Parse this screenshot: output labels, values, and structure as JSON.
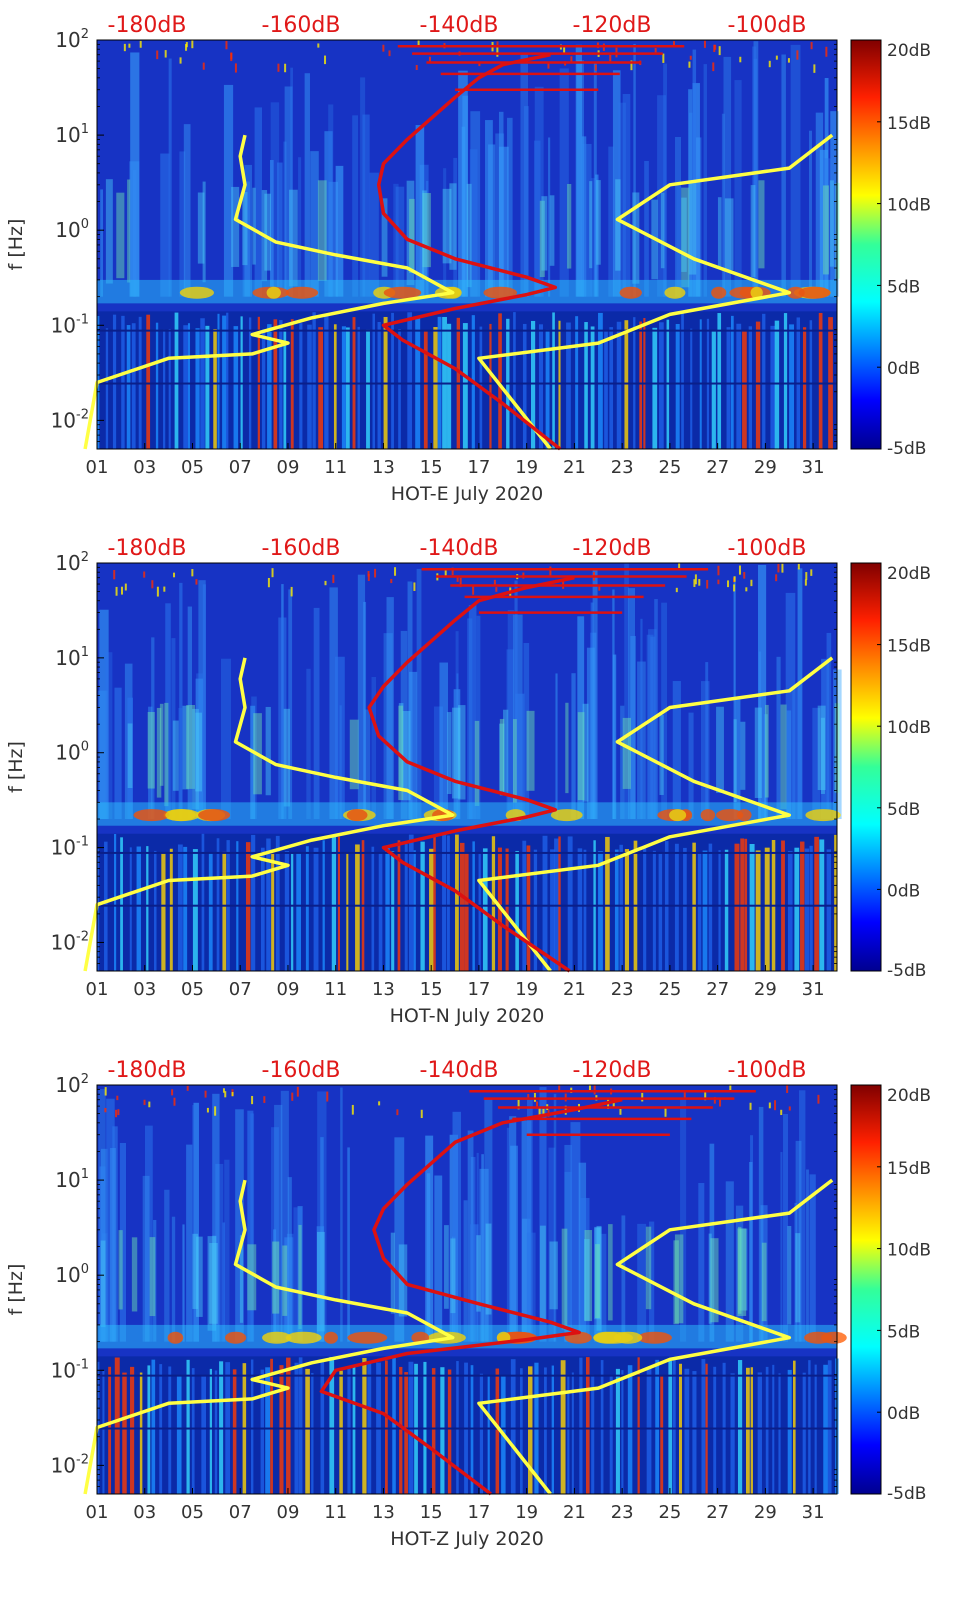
{
  "chart_data": [
    {
      "type": "heatmap",
      "xlabel": "HOT-E July 2020",
      "ylabel": "f [Hz]",
      "x_ticks": [
        "01",
        "03",
        "05",
        "07",
        "09",
        "11",
        "13",
        "15",
        "17",
        "19",
        "21",
        "23",
        "25",
        "27",
        "29",
        "31"
      ],
      "x_range": [
        1,
        32
      ],
      "y_scale": "log",
      "y_range": [
        0.005,
        100
      ],
      "y_ticks": [
        "10^-2",
        "10^-1",
        "10^0",
        "10^1",
        "10^2"
      ],
      "top_axis_ticks": [
        "-180dB",
        "-160dB",
        "-140dB",
        "-120dB",
        "-100dB"
      ],
      "colorbar": {
        "ticks": [
          "20dB",
          "15dB",
          "10dB",
          "5dB",
          "0dB",
          "-5dB"
        ],
        "range": [
          -5,
          20
        ],
        "colormap": "jet"
      },
      "series": [
        {
          "color": "#ffff44",
          "x": [
            7.2,
            7.0,
            7.2,
            6.8,
            8.5,
            11,
            14,
            15.9,
            13,
            10,
            7.5,
            9,
            7.5,
            4,
            1,
            0.5
          ],
          "y": [
            10,
            6,
            3,
            1.3,
            0.75,
            0.55,
            0.4,
            0.22,
            0.17,
            0.12,
            0.08,
            0.065,
            0.05,
            0.045,
            0.025,
            0.005
          ]
        },
        {
          "color": "#ffff44",
          "x": [
            31.8,
            30,
            25,
            22.8,
            26,
            30,
            25,
            22,
            17,
            20
          ],
          "y": [
            10,
            4.5,
            3,
            1.3,
            0.5,
            0.22,
            0.13,
            0.065,
            0.045,
            0.005
          ]
        },
        {
          "color": "#dd1111",
          "x": [
            20,
            18,
            17,
            16,
            15,
            14,
            13,
            12.8,
            13,
            14,
            16,
            19,
            20.2,
            19,
            16,
            13,
            13.8,
            16,
            18,
            20.4
          ],
          "y": [
            70,
            55,
            40,
            25,
            15,
            9,
            5,
            3,
            1.5,
            0.8,
            0.5,
            0.32,
            0.25,
            0.21,
            0.15,
            0.1,
            0.07,
            0.035,
            0.015,
            0.005
          ]
        }
      ]
    },
    {
      "type": "heatmap",
      "xlabel": "HOT-N July 2020",
      "ylabel": "f [Hz]",
      "x_ticks": [
        "01",
        "03",
        "05",
        "07",
        "09",
        "11",
        "13",
        "15",
        "17",
        "19",
        "21",
        "23",
        "25",
        "27",
        "29",
        "31"
      ],
      "x_range": [
        1,
        32
      ],
      "y_scale": "log",
      "y_range": [
        0.005,
        100
      ],
      "y_ticks": [
        "10^-2",
        "10^-1",
        "10^0",
        "10^1",
        "10^2"
      ],
      "top_axis_ticks": [
        "-180dB",
        "-160dB",
        "-140dB",
        "-120dB",
        "-100dB"
      ],
      "colorbar": {
        "ticks": [
          "20dB",
          "15dB",
          "10dB",
          "5dB",
          "0dB",
          "-5dB"
        ],
        "range": [
          -5,
          20
        ],
        "colormap": "jet"
      },
      "series": [
        {
          "color": "#ffff44",
          "x": [
            7.2,
            7.0,
            7.2,
            6.8,
            8.5,
            11,
            14,
            15.9,
            13,
            10,
            7.5,
            9,
            7.5,
            4,
            1,
            0.5
          ],
          "y": [
            10,
            6,
            3,
            1.3,
            0.75,
            0.55,
            0.4,
            0.22,
            0.17,
            0.12,
            0.08,
            0.065,
            0.05,
            0.045,
            0.025,
            0.005
          ]
        },
        {
          "color": "#ffff44",
          "x": [
            31.8,
            30,
            25,
            22.8,
            26,
            30,
            25,
            22,
            17,
            20
          ],
          "y": [
            10,
            4.5,
            3,
            1.3,
            0.5,
            0.22,
            0.13,
            0.065,
            0.045,
            0.005
          ]
        },
        {
          "color": "#dd1111",
          "x": [
            21,
            19,
            17,
            16,
            15,
            14,
            13,
            12.4,
            12.8,
            14,
            16,
            19,
            20.2,
            19,
            16,
            13,
            13.8,
            16,
            18,
            20.8
          ],
          "y": [
            70,
            55,
            40,
            25,
            15,
            9,
            5,
            3,
            1.5,
            0.8,
            0.5,
            0.32,
            0.25,
            0.21,
            0.15,
            0.1,
            0.07,
            0.035,
            0.015,
            0.005
          ]
        }
      ]
    },
    {
      "type": "heatmap",
      "xlabel": "HOT-Z July 2020",
      "ylabel": "f [Hz]",
      "x_ticks": [
        "01",
        "03",
        "05",
        "07",
        "09",
        "11",
        "13",
        "15",
        "17",
        "19",
        "21",
        "23",
        "25",
        "27",
        "29",
        "31"
      ],
      "x_range": [
        1,
        32
      ],
      "y_scale": "log",
      "y_range": [
        0.005,
        100
      ],
      "y_ticks": [
        "10^-2",
        "10^-1",
        "10^0",
        "10^1",
        "10^2"
      ],
      "top_axis_ticks": [
        "-180dB",
        "-160dB",
        "-140dB",
        "-120dB",
        "-100dB"
      ],
      "colorbar": {
        "ticks": [
          "20dB",
          "15dB",
          "10dB",
          "5dB",
          "0dB",
          "-5dB"
        ],
        "range": [
          -5,
          20
        ],
        "colormap": "jet"
      },
      "series": [
        {
          "color": "#ffff44",
          "x": [
            7.2,
            7.0,
            7.2,
            6.8,
            8.5,
            11,
            14,
            15.9,
            13,
            10,
            7.5,
            9,
            7.5,
            4,
            1,
            0.5
          ],
          "y": [
            10,
            6,
            3,
            1.3,
            0.75,
            0.55,
            0.4,
            0.22,
            0.17,
            0.12,
            0.08,
            0.065,
            0.05,
            0.045,
            0.025,
            0.005
          ]
        },
        {
          "color": "#ffff44",
          "x": [
            31.8,
            30,
            25,
            22.8,
            26,
            30,
            25,
            22,
            17,
            20
          ],
          "y": [
            10,
            4.5,
            3,
            1.3,
            0.5,
            0.22,
            0.13,
            0.065,
            0.045,
            0.005
          ]
        },
        {
          "color": "#dd1111",
          "x": [
            23,
            21,
            18,
            16,
            15,
            14,
            13,
            12.6,
            13,
            14,
            17,
            20,
            21.2,
            19,
            14,
            11,
            10.4,
            13,
            15,
            17.5
          ],
          "y": [
            70,
            55,
            40,
            25,
            15,
            9,
            5,
            3,
            1.5,
            0.8,
            0.5,
            0.32,
            0.25,
            0.21,
            0.15,
            0.1,
            0.06,
            0.035,
            0.015,
            0.005
          ]
        }
      ]
    }
  ]
}
